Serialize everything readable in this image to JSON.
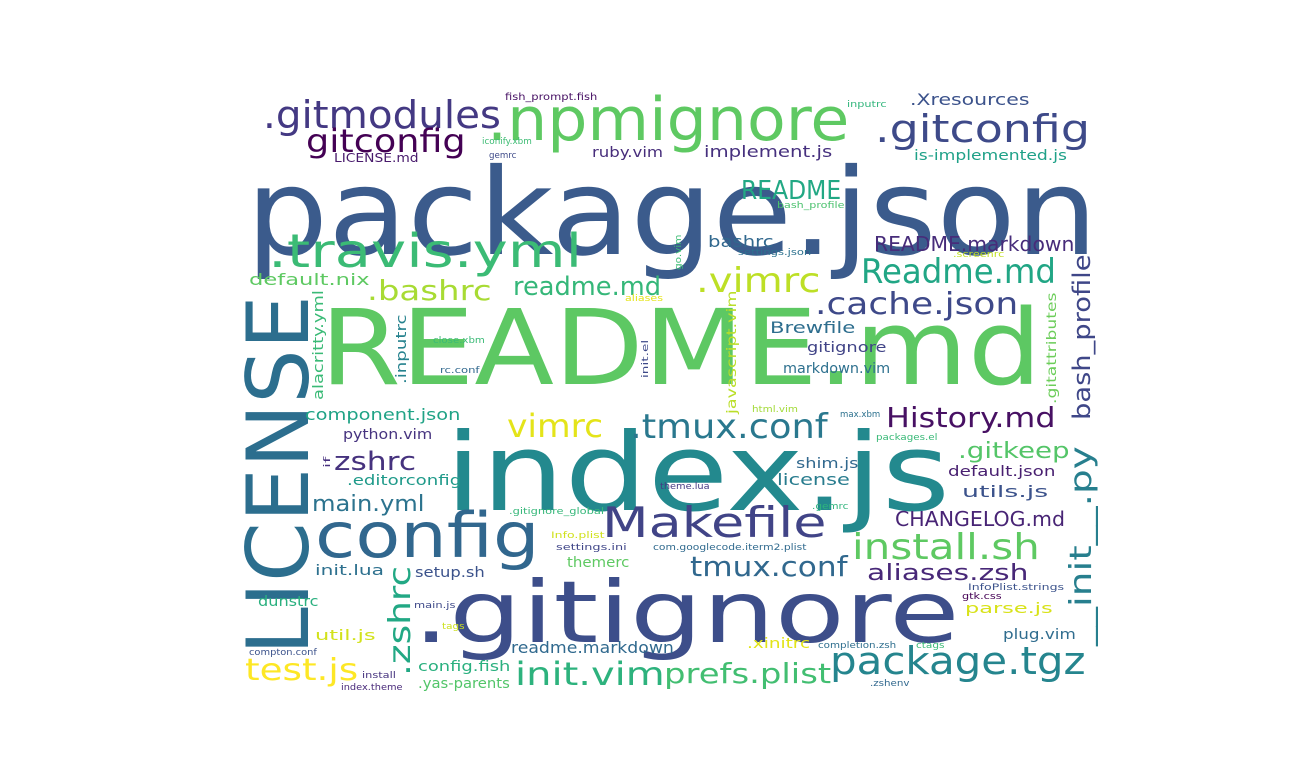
{
  "words": [
    {
      "text": "package.json",
      "color": "#3b5b8c"
    },
    {
      "text": "README.md",
      "color": "#5dc863"
    },
    {
      "text": "index.js",
      "color": "#23898e"
    },
    {
      "text": ".gitignore",
      "color": "#3d4e8a"
    },
    {
      "text": "LICENSE",
      "color": "#2c6e8e"
    },
    {
      "text": "config",
      "color": "#31678e"
    },
    {
      "text": ".npmignore",
      "color": "#5ec962"
    },
    {
      "text": "Makefile",
      "color": "#414487"
    },
    {
      "text": "package.tgz",
      "color": "#25858e"
    },
    {
      "text": ".travis.yml",
      "color": "#3bbb75"
    },
    {
      "text": ".gitmodules",
      "color": "#443983"
    },
    {
      "text": ".gitconfig",
      "color": "#3e4a89"
    },
    {
      "text": "gitconfig",
      "color": "#440154"
    },
    {
      "text": "Readme.md",
      "color": "#21a685"
    },
    {
      "text": "install.sh",
      "color": "#5ec962"
    },
    {
      "text": "init.vim",
      "color": "#2db27d"
    },
    {
      "text": "History.md",
      "color": "#471063"
    },
    {
      "text": ".tmux.conf",
      "color": "#2a788e"
    },
    {
      "text": "tmux.conf",
      "color": "#31688e"
    },
    {
      "text": "prefs.plist",
      "color": "#42be71"
    },
    {
      "text": ".vimrc",
      "color": "#bddf26"
    },
    {
      "text": "vimrc",
      "color": "#e4e419"
    },
    {
      "text": ".cache.json",
      "color": "#3e4989"
    },
    {
      "text": "README",
      "color": "#22a884"
    },
    {
      "text": ".bashrc",
      "color": "#a8db34"
    },
    {
      "text": "readme.md",
      "color": "#35b779"
    },
    {
      "text": "test.js",
      "color": "#fde725"
    },
    {
      "text": "zshrc",
      "color": "#46327e"
    },
    {
      "text": ".zshrc",
      "color": "#22a884"
    },
    {
      "text": "__init__.py",
      "color": "#277f8e"
    },
    {
      "text": "bash_profile",
      "color": "#3f4788"
    },
    {
      "text": "aliases.zsh",
      "color": "#482878"
    },
    {
      "text": "CHANGELOG.md",
      "color": "#482475"
    },
    {
      "text": "README.markdown",
      "color": "#472c7a"
    },
    {
      "text": "main.yml",
      "color": "#2c738e"
    },
    {
      "text": ".gitkeep",
      "color": "#54c568"
    },
    {
      "text": "readme.markdown",
      "color": "#30698e"
    },
    {
      "text": "component.json",
      "color": "#20a386"
    },
    {
      "text": "default.nix",
      "color": "#5ec962"
    },
    {
      "text": ".Xresources",
      "color": "#3b528b"
    },
    {
      "text": "implement.js",
      "color": "#46307e"
    },
    {
      "text": "Brewfile",
      "color": "#2e6e8e"
    },
    {
      "text": "bashrc",
      "color": "#31688e"
    },
    {
      "text": "license",
      "color": "#287c8e"
    },
    {
      "text": "utils.js",
      "color": "#3b528b"
    },
    {
      "text": "default.json",
      "color": "#481f70"
    },
    {
      "text": "shim.js",
      "color": "#31688e"
    },
    {
      "text": "gitignore",
      "color": "#414487"
    },
    {
      "text": "markdown.vim",
      "color": "#2d708e"
    },
    {
      "text": "python.vim",
      "color": "#46337f"
    },
    {
      "text": "ruby.vim",
      "color": "#472d7b"
    },
    {
      "text": "LICENSE.md",
      "color": "#481a6c"
    },
    {
      "text": "is-implemented.js",
      "color": "#1fa188"
    },
    {
      "text": "themerc",
      "color": "#5ec962"
    },
    {
      "text": "setup.sh",
      "color": "#3b528b"
    },
    {
      "text": "init.lua",
      "color": "#2d708e"
    },
    {
      "text": "dunstrc",
      "color": "#2ab07f"
    },
    {
      "text": "util.js",
      "color": "#d2e21b"
    },
    {
      "text": "parse.js",
      "color": "#d8e219"
    },
    {
      "text": "plug.vim",
      "color": "#2f6c8e"
    },
    {
      "text": ".xinitrc",
      "color": "#e2e418"
    },
    {
      "text": "config.fish",
      "color": "#2ab07f"
    },
    {
      "text": ".yas-parents",
      "color": "#52c569"
    },
    {
      "text": ".editorconfig",
      "color": "#1f9a8a"
    },
    {
      "text": ".inputrc",
      "color": "#26828e"
    },
    {
      "text": "alacritty.yml",
      "color": "#3aba76"
    },
    {
      "text": ".gitattributes",
      "color": "#6ccd5a"
    },
    {
      "text": "javascript.vim",
      "color": "#bade28"
    },
    {
      "text": "fish_prompt.fish",
      "color": "#471164"
    },
    {
      "text": "inputrc",
      "color": "#31b57b"
    },
    {
      "text": "iconify.xbm",
      "color": "#3dbc74"
    },
    {
      "text": "gemrc",
      "color": "#3e4a89"
    },
    {
      "text": "bash_profile",
      "color": "#4ac16d"
    },
    {
      "text": "settings.json",
      "color": "#2c718e"
    },
    {
      "text": ".screenrc",
      "color": "#c2df23"
    },
    {
      "text": "go.vim",
      "color": "#3dbc74"
    },
    {
      "text": "aliases",
      "color": "#e5e419"
    },
    {
      "text": "close.xbm",
      "color": "#3aba76"
    },
    {
      "text": "rc.conf",
      "color": "#31688e"
    },
    {
      "text": "init.el",
      "color": "#3e4989"
    },
    {
      "text": "html.vim",
      "color": "#a2da37"
    },
    {
      "text": "max.xbm",
      "color": "#2c718e"
    },
    {
      "text": "packages.el",
      "color": "#38b977"
    },
    {
      "text": "theme.lua",
      "color": "#443a83"
    },
    {
      "text": ".gitignore_global",
      "color": "#35b779"
    },
    {
      "text": ".gemrc",
      "color": "#2fb47c"
    },
    {
      "text": "Info.plist",
      "color": "#d0e11c"
    },
    {
      "text": "settings.ini",
      "color": "#404688"
    },
    {
      "text": "com.googlecode.iterm2.plist",
      "color": "#306a8e"
    },
    {
      "text": "InfoPlist.strings",
      "color": "#3b528b"
    },
    {
      "text": "gtk.css",
      "color": "#440154"
    },
    {
      "text": "main.js",
      "color": "#3e4989"
    },
    {
      "text": "tags",
      "color": "#cde11d"
    },
    {
      "text": "compton.conf",
      "color": "#3b528b"
    },
    {
      "text": "install",
      "color": "#46337f"
    },
    {
      "text": "index.theme",
      "color": "#482979"
    },
    {
      "text": "completion.zsh",
      "color": "#2e6e8e"
    },
    {
      "text": "ctags",
      "color": "#3aba76"
    },
    {
      "text": ".zshenv",
      "color": "#31688e"
    },
    {
      "text": "if",
      "color": "#46307e"
    }
  ]
}
